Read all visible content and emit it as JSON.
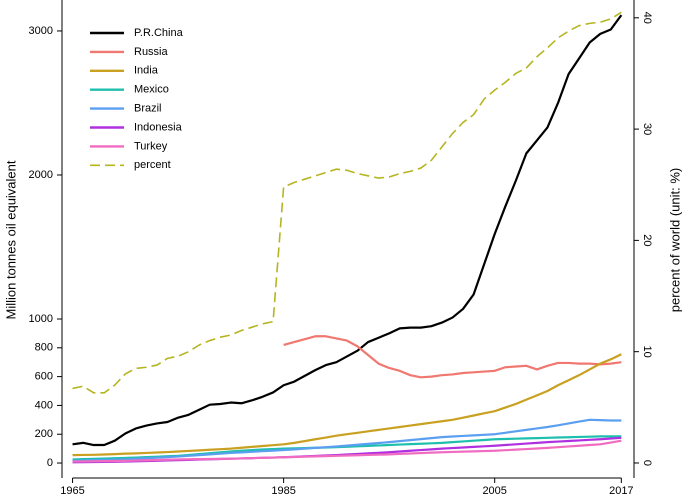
{
  "chart_data": {
    "type": "line",
    "ylabel": "Million tonnes oil equivalent",
    "y2label": "percent of world (unit: %)",
    "x": [
      1965,
      1966,
      1967,
      1968,
      1969,
      1970,
      1971,
      1972,
      1973,
      1974,
      1975,
      1976,
      1977,
      1978,
      1979,
      1980,
      1981,
      1982,
      1983,
      1984,
      1985,
      1986,
      1987,
      1988,
      1989,
      1990,
      1991,
      1992,
      1993,
      1994,
      1995,
      1996,
      1997,
      1998,
      1999,
      2000,
      2001,
      2002,
      2003,
      2004,
      2005,
      2006,
      2007,
      2008,
      2009,
      2010,
      2011,
      2012,
      2013,
      2014,
      2015,
      2016,
      2017
    ],
    "xlim": [
      1964,
      2018.2
    ],
    "xticks": [
      1965,
      1985,
      2005,
      2017
    ],
    "ylim": [
      -104,
      3215
    ],
    "yticks": [
      0,
      200,
      400,
      600,
      800,
      1000,
      2000,
      3000
    ],
    "y2lim": [
      -1.35,
      41.6
    ],
    "y2ticks": [
      0,
      10,
      20,
      30,
      40
    ],
    "legend": "top-left",
    "series": [
      {
        "name": "P.R.China",
        "color": "#000000",
        "values": [
          130,
          140,
          125,
          125,
          155,
          205,
          240,
          260,
          275,
          285,
          315,
          335,
          370,
          405,
          410,
          420,
          415,
          435,
          460,
          490,
          540,
          565,
          605,
          645,
          680,
          700,
          740,
          780,
          840,
          870,
          900,
          935,
          940,
          940,
          950,
          975,
          1010,
          1070,
          1170,
          1380,
          1590,
          1780,
          1960,
          2150,
          2240,
          2330,
          2500,
          2700,
          2810,
          2920,
          2980,
          3010,
          3110
        ]
      },
      {
        "name": "Russia",
        "color": "#f07870",
        "values": [
          null,
          null,
          null,
          null,
          null,
          null,
          null,
          null,
          null,
          null,
          null,
          null,
          null,
          null,
          null,
          null,
          null,
          null,
          null,
          null,
          820,
          840,
          860,
          880,
          880,
          865,
          850,
          810,
          750,
          690,
          660,
          640,
          610,
          595,
          600,
          610,
          615,
          625,
          630,
          635,
          640,
          665,
          670,
          675,
          650,
          675,
          695,
          695,
          690,
          690,
          685,
          690,
          700
        ]
      },
      {
        "name": "India",
        "color": "#c9a020",
        "values": [
          55,
          56,
          57,
          59,
          62,
          65,
          67,
          70,
          73,
          76,
          80,
          84,
          88,
          92,
          96,
          100,
          106,
          112,
          118,
          124,
          130,
          140,
          152,
          165,
          177,
          190,
          200,
          210,
          220,
          230,
          240,
          250,
          260,
          270,
          280,
          290,
          300,
          315,
          330,
          345,
          360,
          385,
          410,
          440,
          470,
          500,
          540,
          575,
          610,
          650,
          690,
          720,
          755
        ]
      },
      {
        "name": "Mexico",
        "color": "#1fbfae",
        "values": [
          25,
          27,
          29,
          31,
          33,
          35,
          38,
          41,
          44,
          47,
          50,
          56,
          62,
          68,
          74,
          80,
          85,
          90,
          94,
          97,
          100,
          102,
          104,
          106,
          108,
          110,
          113,
          116,
          119,
          122,
          125,
          128,
          131,
          134,
          137,
          140,
          145,
          150,
          155,
          160,
          165,
          167,
          169,
          171,
          173,
          175,
          177,
          179,
          181,
          183,
          185,
          185,
          185
        ]
      },
      {
        "name": "Brazil",
        "color": "#5b9ff0",
        "values": [
          15,
          17,
          19,
          21,
          23,
          25,
          29,
          33,
          37,
          41,
          45,
          50,
          55,
          60,
          65,
          70,
          74,
          78,
          82,
          86,
          90,
          95,
          100,
          105,
          110,
          115,
          121,
          127,
          133,
          139,
          145,
          152,
          159,
          166,
          173,
          180,
          184,
          188,
          192,
          196,
          200,
          210,
          220,
          230,
          240,
          250,
          262,
          275,
          288,
          300,
          298,
          295,
          295
        ]
      },
      {
        "name": "Indonesia",
        "color": "#b030e0",
        "values": [
          5,
          6,
          7,
          8,
          9,
          10,
          12,
          14,
          16,
          18,
          20,
          22,
          24,
          26,
          28,
          30,
          32,
          34,
          36,
          38,
          40,
          43,
          46,
          49,
          52,
          55,
          59,
          63,
          67,
          71,
          75,
          80,
          85,
          90,
          95,
          100,
          104,
          108,
          112,
          116,
          120,
          125,
          130,
          135,
          140,
          145,
          149,
          153,
          157,
          161,
          165,
          170,
          175
        ]
      },
      {
        "name": "Turkey",
        "color": "#f06cc0",
        "values": [
          10,
          11,
          12,
          13,
          14,
          15,
          17,
          19,
          21,
          23,
          25,
          26,
          27,
          28,
          29,
          30,
          32,
          34,
          36,
          38,
          40,
          42,
          44,
          46,
          48,
          50,
          52,
          54,
          56,
          58,
          60,
          63,
          66,
          69,
          72,
          75,
          77,
          79,
          81,
          83,
          85,
          89,
          93,
          97,
          101,
          105,
          110,
          115,
          120,
          125,
          130,
          142,
          155
        ]
      },
      {
        "name": "percent",
        "color": "#b5b522",
        "axis": "y2",
        "line_style": "dashed",
        "values": [
          6.7,
          6.9,
          6.3,
          6.3,
          7.0,
          8.0,
          8.5,
          8.6,
          8.8,
          9.4,
          9.6,
          10.0,
          10.6,
          11.0,
          11.3,
          11.5,
          11.9,
          12.2,
          12.5,
          12.7,
          24.8,
          25.2,
          25.5,
          25.8,
          26.1,
          26.4,
          26.3,
          26.0,
          25.8,
          25.6,
          25.7,
          26.0,
          26.2,
          26.5,
          27.2,
          28.4,
          29.6,
          30.6,
          31.3,
          32.7,
          33.5,
          34.2,
          35.0,
          35.5,
          36.5,
          37.3,
          38.2,
          38.8,
          39.3,
          39.5,
          39.6,
          39.9,
          40.5
        ]
      }
    ]
  }
}
